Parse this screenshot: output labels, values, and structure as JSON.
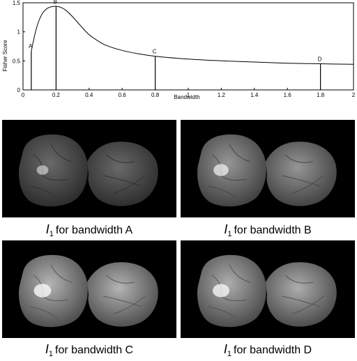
{
  "chart_data": {
    "type": "line",
    "xlabel": "Bandwidth",
    "ylabel": "Fisher Score",
    "xlim": [
      0,
      2
    ],
    "ylim": [
      0,
      1.5
    ],
    "xticks": [
      "0",
      "0.2",
      "0.4",
      "0.6",
      "0.8",
      "1",
      "1.2",
      "1.4",
      "1.6",
      "1.8",
      "2"
    ],
    "yticks": [
      "0",
      "0.5",
      "1",
      "1.5"
    ],
    "x": [
      0.05,
      0.08,
      0.11,
      0.14,
      0.17,
      0.2,
      0.23,
      0.26,
      0.3,
      0.35,
      0.4,
      0.45,
      0.5,
      0.6,
      0.7,
      0.8,
      1.0,
      1.2,
      1.4,
      1.6,
      1.8,
      2.0
    ],
    "y": [
      0.67,
      1.05,
      1.28,
      1.39,
      1.43,
      1.44,
      1.42,
      1.37,
      1.26,
      1.1,
      0.95,
      0.85,
      0.77,
      0.68,
      0.62,
      0.58,
      0.53,
      0.5,
      0.48,
      0.46,
      0.45,
      0.44
    ],
    "markers": [
      {
        "label": "A",
        "x": 0.05,
        "y": 0.67
      },
      {
        "label": "B",
        "x": 0.2,
        "y": 1.44
      },
      {
        "label": "C",
        "x": 0.8,
        "y": 0.58
      },
      {
        "label": "D",
        "x": 1.8,
        "y": 0.45
      }
    ],
    "grid": false
  },
  "panels": [
    {
      "symbol": "I",
      "subscript": "1",
      "caption": "for bandwidth A",
      "brightness": 0.3
    },
    {
      "symbol": "I",
      "subscript": "1",
      "caption": "for bandwidth B",
      "brightness": 0.6
    },
    {
      "symbol": "I",
      "subscript": "1",
      "caption": "for bandwidth C",
      "brightness": 0.8
    },
    {
      "symbol": "I",
      "subscript": "1",
      "caption": "for bandwidth D",
      "brightness": 0.75
    }
  ]
}
